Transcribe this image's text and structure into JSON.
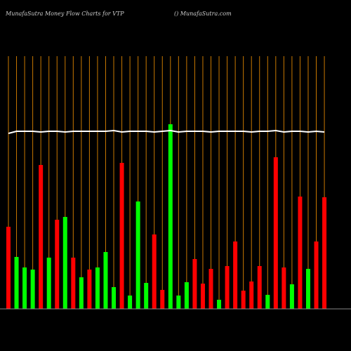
{
  "chart_data": {
    "type": "bar",
    "title": "MunafaSutra  Money Flow  Charts for VTP",
    "subtitle": "() MunafaSutra.com",
    "categories": [
      null,
      null,
      null,
      null,
      null,
      null,
      null,
      null,
      null,
      null,
      null,
      null,
      null,
      null,
      null,
      null,
      null,
      null,
      null,
      null,
      null,
      null,
      null,
      null,
      null,
      null,
      null,
      null,
      null,
      null,
      null,
      null,
      null,
      null,
      null,
      null,
      null,
      null,
      null,
      null
    ],
    "values": [
      117,
      74,
      59,
      56,
      205,
      73,
      127,
      131,
      73,
      45,
      56,
      59,
      81,
      31,
      208,
      19,
      153,
      37,
      106,
      27,
      263,
      19,
      38,
      71,
      36,
      57,
      13,
      61,
      96,
      26,
      39,
      61,
      20,
      216,
      59,
      35,
      160,
      57,
      96,
      159
    ],
    "colors": [
      "#ff0000",
      "#00ff00",
      "#00ff00",
      "#00ff00",
      "#ff0000",
      "#00ff00",
      "#ff0000",
      "#00ff00",
      "#ff0000",
      "#00ff00",
      "#ff0000",
      "#00ff00",
      "#00ff00",
      "#00ff00",
      "#ff0000",
      "#00ff00",
      "#00ff00",
      "#00ff00",
      "#ff0000",
      "#ff0000",
      "#00ff00",
      "#00ff00",
      "#00ff00",
      "#ff0000",
      "#ff0000",
      "#ff0000",
      "#00ff00",
      "#ff0000",
      "#ff0000",
      "#ff0000",
      "#ff0000",
      "#ff0000",
      "#00ff00",
      "#ff0000",
      "#ff0000",
      "#00ff00",
      "#ff0000",
      "#00ff00",
      "#ff0000",
      "#ff0000"
    ],
    "line": {
      "color": "#ffffff",
      "values": [
        250,
        253,
        253,
        253,
        252,
        253,
        253,
        252,
        253,
        253,
        253,
        253,
        253,
        254,
        252,
        253,
        253,
        253,
        252,
        253,
        254,
        252,
        253,
        253,
        253,
        252,
        253,
        253,
        253,
        253,
        252,
        253,
        253,
        254,
        252,
        253,
        253,
        252,
        253,
        252
      ]
    },
    "ylim": [
      0,
      360
    ],
    "grid": true,
    "grid_color": "#c87800"
  }
}
